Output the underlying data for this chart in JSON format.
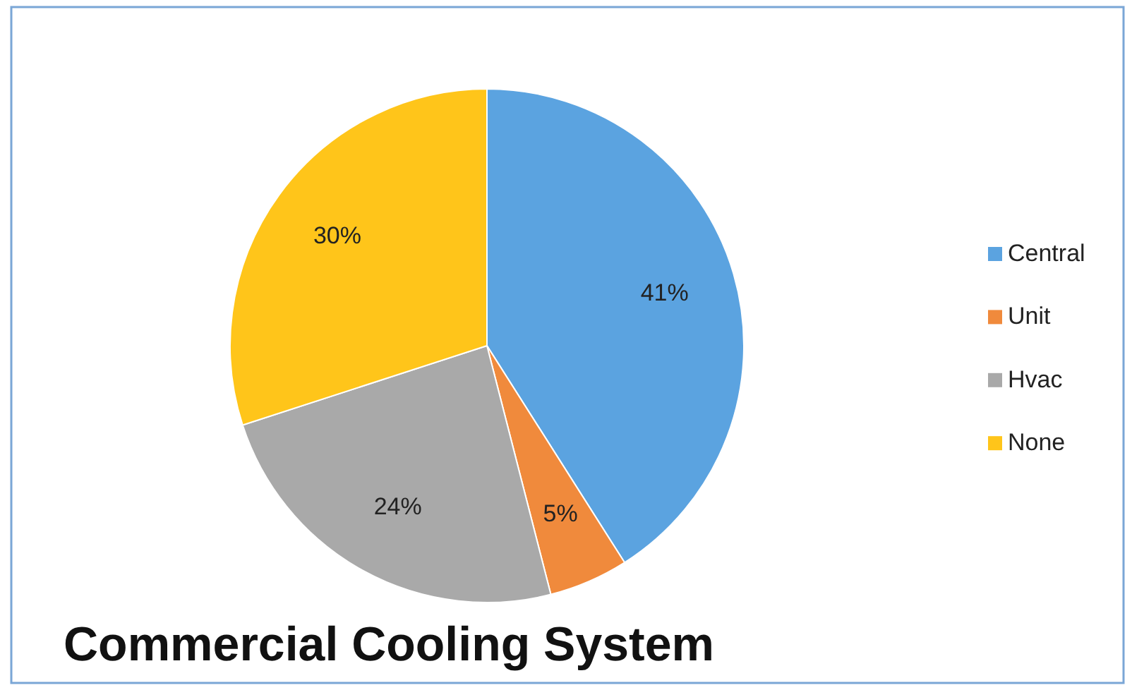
{
  "chart_data": {
    "type": "pie",
    "title": "Commercial Cooling System",
    "categories": [
      "Central",
      "Unit",
      "Hvac",
      "None"
    ],
    "values": [
      41,
      5,
      24,
      30
    ],
    "colors": [
      "#5ba3e0",
      "#f08a3c",
      "#a9a9a9",
      "#ffc51a"
    ],
    "value_labels": [
      "41%",
      "5%",
      "24%",
      "30%"
    ],
    "legend": "right"
  }
}
